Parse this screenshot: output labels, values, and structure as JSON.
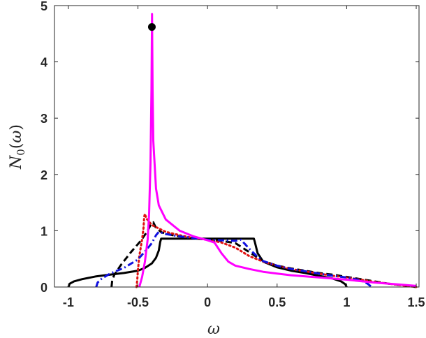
{
  "chart_data": {
    "type": "line",
    "title": "",
    "xlabel": "ω",
    "ylabel": {
      "main": "N",
      "sub": "0",
      "open": "(",
      "arg": "ω",
      "close": ")"
    },
    "xlim": [
      -1.1,
      1.52
    ],
    "ylim": [
      0,
      5
    ],
    "xticks": [
      -1,
      -0.5,
      0,
      0.5,
      1,
      1.5
    ],
    "yticks": [
      0,
      1,
      2,
      3,
      4,
      5
    ],
    "xtick_labels": [
      "-1",
      "-0.5",
      "0",
      "0.5",
      "1",
      "1.5"
    ],
    "ytick_labels": [
      "0",
      "1",
      "2",
      "3",
      "4",
      "5"
    ],
    "grid": false,
    "series": [
      {
        "color": "#000000",
        "style": "solid",
        "points": [
          [
            -1.0,
            0.0
          ],
          [
            -0.99,
            0.06
          ],
          [
            -0.96,
            0.1
          ],
          [
            -0.9,
            0.14
          ],
          [
            -0.8,
            0.19
          ],
          [
            -0.7,
            0.22
          ],
          [
            -0.6,
            0.25
          ],
          [
            -0.5,
            0.29
          ],
          [
            -0.45,
            0.34
          ],
          [
            -0.4,
            0.42
          ],
          [
            -0.37,
            0.52
          ],
          [
            -0.35,
            0.65
          ],
          [
            -0.34,
            0.8
          ],
          [
            -0.333,
            0.86
          ],
          [
            -0.2,
            0.86
          ],
          [
            0.0,
            0.86
          ],
          [
            0.2,
            0.86
          ],
          [
            0.333,
            0.86
          ],
          [
            0.34,
            0.8
          ],
          [
            0.36,
            0.6
          ],
          [
            0.4,
            0.45
          ],
          [
            0.5,
            0.35
          ],
          [
            0.6,
            0.29
          ],
          [
            0.7,
            0.25
          ],
          [
            0.8,
            0.2
          ],
          [
            0.9,
            0.15
          ],
          [
            0.96,
            0.1
          ],
          [
            0.99,
            0.05
          ],
          [
            1.0,
            0.0
          ]
        ]
      },
      {
        "color": "#000000",
        "style": "dashed",
        "points": [
          [
            -0.69,
            0.0
          ],
          [
            -0.685,
            0.12
          ],
          [
            -0.67,
            0.22
          ],
          [
            -0.62,
            0.4
          ],
          [
            -0.55,
            0.62
          ],
          [
            -0.48,
            0.82
          ],
          [
            -0.43,
            1.0
          ],
          [
            -0.41,
            1.1
          ],
          [
            -0.39,
            1.15
          ],
          [
            -0.37,
            1.05
          ],
          [
            -0.33,
            0.97
          ],
          [
            -0.25,
            0.92
          ],
          [
            -0.15,
            0.88
          ],
          [
            0.0,
            0.84
          ],
          [
            0.1,
            0.82
          ],
          [
            0.2,
            0.78
          ],
          [
            0.3,
            0.62
          ],
          [
            0.4,
            0.46
          ],
          [
            0.5,
            0.38
          ],
          [
            0.6,
            0.33
          ],
          [
            0.7,
            0.29
          ],
          [
            0.8,
            0.25
          ],
          [
            0.9,
            0.22
          ],
          [
            1.0,
            0.18
          ],
          [
            1.1,
            0.14
          ],
          [
            1.2,
            0.1
          ],
          [
            1.3,
            0.06
          ],
          [
            1.4,
            0.03
          ],
          [
            1.5,
            0.0
          ]
        ]
      },
      {
        "color": "#e01010",
        "style": "dotted",
        "points": [
          [
            -0.51,
            0.0
          ],
          [
            -0.505,
            0.12
          ],
          [
            -0.5,
            0.3
          ],
          [
            -0.49,
            0.55
          ],
          [
            -0.47,
            0.85
          ],
          [
            -0.46,
            1.05
          ],
          [
            -0.455,
            1.25
          ],
          [
            -0.45,
            1.3
          ],
          [
            -0.44,
            1.22
          ],
          [
            -0.4,
            1.1
          ],
          [
            -0.3,
            0.98
          ],
          [
            -0.2,
            0.92
          ],
          [
            -0.1,
            0.87
          ],
          [
            0.0,
            0.84
          ],
          [
            0.1,
            0.79
          ],
          [
            0.2,
            0.7
          ],
          [
            0.3,
            0.55
          ],
          [
            0.4,
            0.45
          ],
          [
            0.5,
            0.38
          ],
          [
            0.6,
            0.32
          ],
          [
            0.7,
            0.28
          ],
          [
            0.8,
            0.24
          ],
          [
            0.9,
            0.2
          ],
          [
            1.0,
            0.17
          ],
          [
            1.1,
            0.13
          ],
          [
            1.2,
            0.09
          ],
          [
            1.3,
            0.06
          ],
          [
            1.4,
            0.03
          ],
          [
            1.5,
            0.0
          ]
        ]
      },
      {
        "color": "#1010e0",
        "style": "dashdot",
        "points": [
          [
            -0.8,
            0.0
          ],
          [
            -0.79,
            0.08
          ],
          [
            -0.76,
            0.15
          ],
          [
            -0.7,
            0.24
          ],
          [
            -0.6,
            0.34
          ],
          [
            -0.5,
            0.49
          ],
          [
            -0.45,
            0.63
          ],
          [
            -0.4,
            0.78
          ],
          [
            -0.37,
            0.92
          ],
          [
            -0.35,
            0.98
          ],
          [
            -0.3,
            0.94
          ],
          [
            -0.2,
            0.9
          ],
          [
            -0.1,
            0.87
          ],
          [
            0.0,
            0.84
          ],
          [
            0.1,
            0.83
          ],
          [
            0.2,
            0.82
          ],
          [
            0.24,
            0.84
          ],
          [
            0.27,
            0.76
          ],
          [
            0.3,
            0.68
          ],
          [
            0.35,
            0.56
          ],
          [
            0.4,
            0.46
          ],
          [
            0.5,
            0.38
          ],
          [
            0.6,
            0.32
          ],
          [
            0.7,
            0.28
          ],
          [
            0.8,
            0.24
          ],
          [
            0.9,
            0.2
          ],
          [
            1.0,
            0.17
          ],
          [
            1.1,
            0.12
          ],
          [
            1.15,
            0.06
          ],
          [
            1.18,
            0.0
          ]
        ]
      },
      {
        "color": "#ff00ff",
        "style": "solid",
        "points": [
          [
            -0.49,
            0.0
          ],
          [
            -0.47,
            0.18
          ],
          [
            -0.45,
            0.45
          ],
          [
            -0.43,
            0.85
          ],
          [
            -0.42,
            1.3
          ],
          [
            -0.41,
            2.2
          ],
          [
            -0.403,
            3.5
          ],
          [
            -0.399,
            4.85
          ],
          [
            -0.395,
            3.5
          ],
          [
            -0.39,
            2.6
          ],
          [
            -0.37,
            1.75
          ],
          [
            -0.35,
            1.45
          ],
          [
            -0.3,
            1.2
          ],
          [
            -0.2,
            1.0
          ],
          [
            -0.1,
            0.9
          ],
          [
            0.0,
            0.83
          ],
          [
            0.05,
            0.79
          ],
          [
            0.1,
            0.6
          ],
          [
            0.15,
            0.45
          ],
          [
            0.2,
            0.38
          ],
          [
            0.3,
            0.32
          ],
          [
            0.4,
            0.27
          ],
          [
            0.5,
            0.24
          ],
          [
            0.6,
            0.21
          ],
          [
            0.8,
            0.17
          ],
          [
            1.0,
            0.13
          ],
          [
            1.2,
            0.08
          ],
          [
            1.4,
            0.04
          ],
          [
            1.5,
            0.02
          ]
        ]
      }
    ],
    "annotations": [
      {
        "type": "marker",
        "x": -0.4,
        "y": 4.62,
        "color": "#000000"
      }
    ]
  }
}
